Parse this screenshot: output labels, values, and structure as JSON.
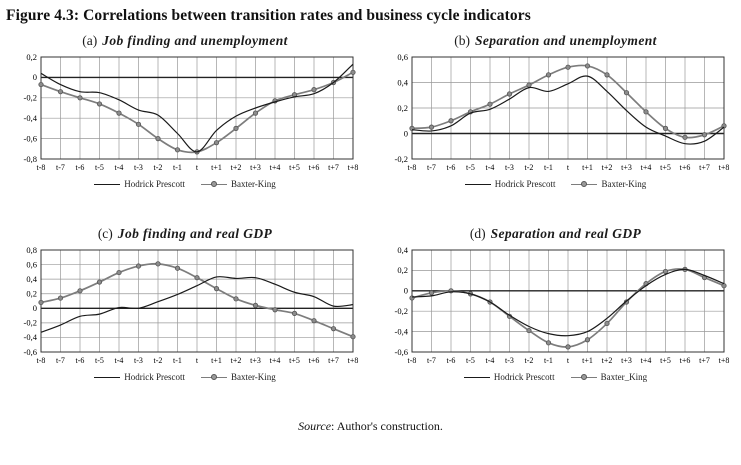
{
  "figure_title": "Figure 4.3: Correlations between transition rates and business cycle indicators",
  "source": {
    "label_italic": "Source",
    "rest": ": Author's construction."
  },
  "colors": {
    "hp_line": "#1a1a1a",
    "bk_line": "#7d7d7d",
    "grid": "#999999",
    "zero_line": "#222222",
    "border": "#333333",
    "marker_fill": "#8c8c8c",
    "marker_stroke": "#555555"
  },
  "chart_data": [
    {
      "type": "line",
      "title_prefix": "(a)",
      "title_text": "Job finding and unemployment",
      "x": [
        "t-8",
        "t-7",
        "t-6",
        "t-5",
        "t-4",
        "t-3",
        "t-2",
        "t-1",
        "t",
        "t+1",
        "t+2",
        "t+3",
        "t+4",
        "t+5",
        "t+6",
        "t+7",
        "t+8"
      ],
      "ylim": [
        -0.8,
        0.2
      ],
      "ytick_vals": [
        0.2,
        0,
        -0.2,
        -0.4,
        -0.6,
        -0.8
      ],
      "ytick_labels": [
        "0,2",
        "0",
        "-0,2",
        "-0,4",
        "-0,6",
        "-0,8"
      ],
      "grid": true,
      "legend_position": "bottom",
      "series": [
        {
          "name": "Hodrick Prescott",
          "marker": "none",
          "values": [
            0.04,
            -0.07,
            -0.14,
            -0.15,
            -0.22,
            -0.32,
            -0.37,
            -0.55,
            -0.73,
            -0.52,
            -0.38,
            -0.3,
            -0.24,
            -0.19,
            -0.16,
            -0.05,
            0.13
          ]
        },
        {
          "name": "Baxter-King",
          "marker": "circle",
          "values": [
            -0.07,
            -0.14,
            -0.2,
            -0.26,
            -0.35,
            -0.46,
            -0.6,
            -0.71,
            -0.73,
            -0.64,
            -0.5,
            -0.35,
            -0.23,
            -0.17,
            -0.12,
            -0.05,
            0.05
          ]
        }
      ]
    },
    {
      "type": "line",
      "title_prefix": "(b)",
      "title_text": "Separation and unemployment",
      "x": [
        "t-8",
        "t-7",
        "t-6",
        "t-5",
        "t-4",
        "t-3",
        "t-2",
        "t-1",
        "t",
        "t+1",
        "t+2",
        "t+3",
        "t+4",
        "t+5",
        "t+6",
        "t+7",
        "t+8"
      ],
      "ylim": [
        -0.2,
        0.6
      ],
      "ytick_vals": [
        0.6,
        0.4,
        0.2,
        0,
        -0.2
      ],
      "ytick_labels": [
        "0,6",
        "0,4",
        "0,2",
        "0",
        "-0,2"
      ],
      "grid": true,
      "legend_position": "bottom",
      "series": [
        {
          "name": "Hodrick Prescott",
          "marker": "none",
          "values": [
            0.03,
            0.02,
            0.06,
            0.16,
            0.19,
            0.27,
            0.36,
            0.33,
            0.39,
            0.45,
            0.33,
            0.18,
            0.05,
            -0.02,
            -0.08,
            -0.06,
            0.05
          ]
        },
        {
          "name": "Baxter-King",
          "marker": "circle",
          "values": [
            0.04,
            0.05,
            0.1,
            0.17,
            0.23,
            0.31,
            0.38,
            0.46,
            0.52,
            0.53,
            0.46,
            0.32,
            0.17,
            0.04,
            -0.03,
            -0.01,
            0.06
          ]
        }
      ]
    },
    {
      "type": "line",
      "title_prefix": "(c)",
      "title_text": "Job finding and real GDP",
      "x": [
        "t-8",
        "t-7",
        "t-6",
        "t-5",
        "t-4",
        "t-3",
        "t-2",
        "t-1",
        "t",
        "t+1",
        "t+2",
        "t+3",
        "t+4",
        "t+5",
        "t+6",
        "t+7",
        "t+8"
      ],
      "ylim": [
        -0.6,
        0.8
      ],
      "ytick_vals": [
        0.8,
        0.6,
        0.4,
        0.2,
        0,
        -0.2,
        -0.4,
        -0.6
      ],
      "ytick_labels": [
        "0,8",
        "0,6",
        "0,4",
        "0,2",
        "0",
        "-0,2",
        "-0,4",
        "-0,6"
      ],
      "grid": true,
      "legend_position": "bottom",
      "series": [
        {
          "name": "Hodrick Prescott",
          "marker": "none",
          "values": [
            -0.33,
            -0.23,
            -0.11,
            -0.08,
            0.01,
            0.0,
            0.09,
            0.19,
            0.31,
            0.43,
            0.41,
            0.42,
            0.33,
            0.22,
            0.16,
            0.03,
            0.05
          ]
        },
        {
          "name": "Baxter-King",
          "marker": "circle",
          "values": [
            0.08,
            0.14,
            0.24,
            0.36,
            0.49,
            0.58,
            0.61,
            0.55,
            0.42,
            0.27,
            0.13,
            0.04,
            -0.02,
            -0.07,
            -0.17,
            -0.28,
            -0.39
          ]
        }
      ]
    },
    {
      "type": "line",
      "title_prefix": "(d)",
      "title_text": "Separation and real GDP",
      "x": [
        "t-8",
        "t-7",
        "t-6",
        "t-5",
        "t-4",
        "t-3",
        "t-2",
        "t-1",
        "t",
        "t+1",
        "t+2",
        "t+3",
        "t+4",
        "t+5",
        "t+6",
        "t+7",
        "t+8"
      ],
      "ylim": [
        -0.6,
        0.4
      ],
      "ytick_vals": [
        0.4,
        0.2,
        0,
        -0.2,
        -0.4,
        -0.6
      ],
      "ytick_labels": [
        "0,4",
        "0,2",
        "0",
        "-0,2",
        "-0,4",
        "-0,6"
      ],
      "grid": true,
      "legend_position": "bottom",
      "series": [
        {
          "name": "Hodrick Prescott",
          "marker": "none",
          "values": [
            -0.06,
            -0.05,
            -0.01,
            -0.03,
            -0.11,
            -0.24,
            -0.35,
            -0.42,
            -0.44,
            -0.4,
            -0.27,
            -0.1,
            0.05,
            0.16,
            0.21,
            0.15,
            0.07
          ]
        },
        {
          "name": "Baxter_King",
          "marker": "circle",
          "values": [
            -0.07,
            -0.02,
            0.0,
            -0.03,
            -0.11,
            -0.25,
            -0.39,
            -0.51,
            -0.55,
            -0.48,
            -0.32,
            -0.11,
            0.07,
            0.19,
            0.21,
            0.13,
            0.05
          ]
        }
      ]
    }
  ]
}
